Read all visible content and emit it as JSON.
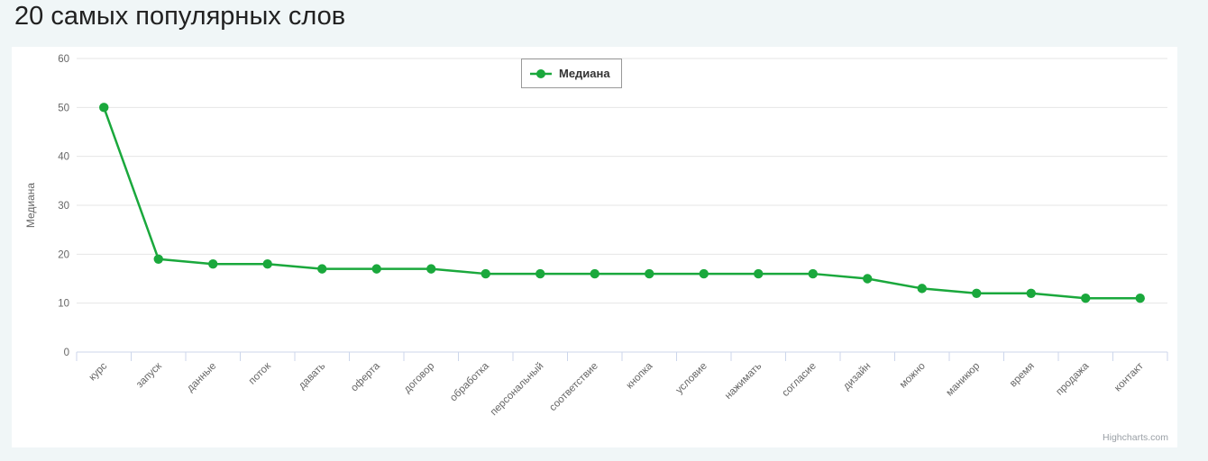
{
  "page": {
    "title": "20 самых популярных слов",
    "credits": "Highcharts.com"
  },
  "legend": {
    "label": "Медиана"
  },
  "colors": {
    "series": "#1aa83c",
    "grid": "#e6e6e6",
    "axis_line": "#ccd6eb",
    "axis_label": "#666666",
    "axis_title": "#666666",
    "page_bg": "#f0f6f7",
    "chart_bg": "#ffffff",
    "legend_border": "#999999",
    "credits": "#999fa5"
  },
  "chart_data": {
    "type": "line",
    "title": "20 самых популярных слов",
    "categories": [
      "курс",
      "запуск",
      "данные",
      "поток",
      "давать",
      "оферта",
      "договор",
      "обработка",
      "персональный",
      "соответствие",
      "кнопка",
      "условие",
      "нажимать",
      "согласие",
      "дизайн",
      "можно",
      "маникюр",
      "время",
      "продажа",
      "контакт"
    ],
    "series": [
      {
        "name": "Медиана",
        "values": [
          50,
          19,
          18,
          18,
          17,
          17,
          17,
          16,
          16,
          16,
          16,
          16,
          16,
          16,
          15,
          13,
          12,
          12,
          11,
          11
        ]
      }
    ],
    "xlabel": "",
    "ylabel": "Медиана",
    "ylim": [
      0,
      60
    ],
    "ytick_step": 10,
    "yticks": [
      0,
      10,
      20,
      30,
      40,
      50,
      60
    ],
    "grid": true,
    "x_label_rotation": -45,
    "legend_position": "top-center",
    "marker": "circle"
  }
}
